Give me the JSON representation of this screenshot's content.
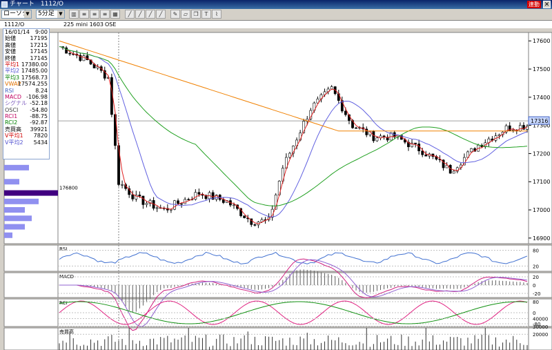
{
  "window": {
    "title": "チャート　1112/O",
    "link_label": "連動",
    "close_label": "✕"
  },
  "toolbar": {
    "chart_type": "ローソク",
    "interval": "5分足",
    "buttons": [
      "bar-chart-icon",
      "list-icon",
      "list-icon",
      "list-icon",
      "table-icon",
      "line-icon",
      "line-icon",
      "line-icon",
      "line-icon",
      "pencil-icon",
      "eraser-icon",
      "copy-icon",
      "text-icon",
      "fibonacci-icon"
    ]
  },
  "info": {
    "symbol": "1112/O",
    "contract": "225 mini 1603",
    "exchange": "OSE"
  },
  "panel": {
    "rows": [
      {
        "label": "16/01/14",
        "value": "9:00",
        "color": "#000000"
      },
      {
        "label": "始値",
        "value": "17195",
        "color": "#000000"
      },
      {
        "label": "高値",
        "value": "17215",
        "color": "#000000"
      },
      {
        "label": "安値",
        "value": "17145",
        "color": "#000000"
      },
      {
        "label": "終値",
        "value": "17145",
        "color": "#000000"
      },
      {
        "label": "平均1",
        "value": "17380.00",
        "color": "#d00000"
      },
      {
        "label": "平均2",
        "value": "17485.00",
        "color": "#5050d0"
      },
      {
        "label": "平均3",
        "value": "17568.73",
        "color": "#008000"
      },
      {
        "label": "VWAP",
        "value": "17574.255",
        "color": "#e07000"
      },
      {
        "label": "RSI",
        "value": "8.24",
        "color": "#4060c0"
      },
      {
        "label": "MACD",
        "value": "-106.98",
        "color": "#c00060"
      },
      {
        "label": "シグナル",
        "value": "-52.18",
        "color": "#8060c0"
      },
      {
        "label": "OSCI",
        "value": "-54.80",
        "color": "#404040"
      },
      {
        "label": "RCI1",
        "value": "-88.75",
        "color": "#c00060"
      },
      {
        "label": "RCI2",
        "value": "-92.87",
        "color": "#008000"
      },
      {
        "label": "売買高",
        "value": "39921",
        "color": "#000000"
      },
      {
        "label": "V平均1",
        "value": "7820",
        "color": "#d00000"
      },
      {
        "label": "V平均2",
        "value": "5434",
        "color": "#5050d0"
      }
    ]
  },
  "price_axis": {
    "labels": [
      "17600",
      "17500",
      "17400",
      "17300",
      "17200",
      "17100",
      "17000",
      "16900"
    ],
    "current": "17316"
  },
  "profile_label": "176800",
  "subpanels": {
    "rsi": {
      "title": "RSI",
      "ticks": [
        "80",
        "20"
      ]
    },
    "macd": {
      "title": "MACD",
      "ticks": [
        "20",
        "0",
        "-20"
      ]
    },
    "rci": {
      "title": "RCI",
      "ticks": [
        "80",
        "0",
        "-80"
      ]
    },
    "volume": {
      "title": "売買高",
      "ticks": [
        "40000",
        "30000",
        "20000"
      ]
    }
  },
  "colors": {
    "up": "#ffffff",
    "down": "#000000",
    "ma1": "#e02020",
    "ma2": "#6060e0",
    "ma3": "#20a020",
    "vwap": "#f08000",
    "rsi": "#4070d0",
    "macd": "#d02080",
    "signal": "#9060d0",
    "rci1": "#e02080",
    "rci2": "#109010",
    "profile": "#9090f0",
    "profile_max": "#400080"
  }
}
